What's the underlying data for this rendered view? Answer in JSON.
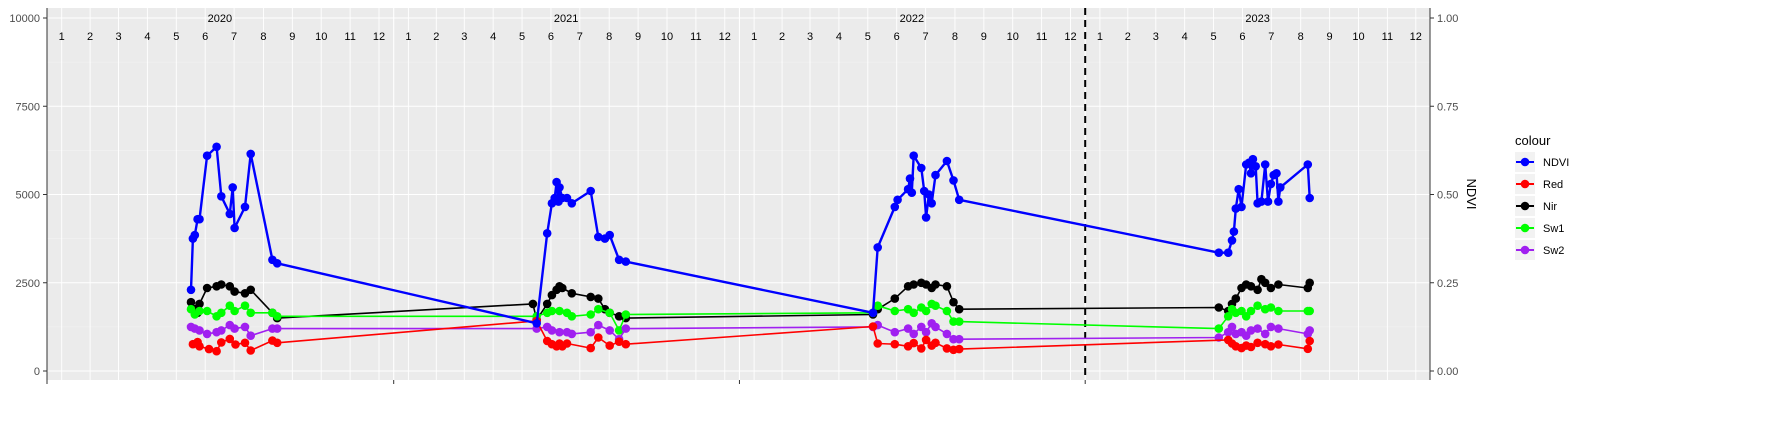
{
  "chart_data": {
    "type": "line",
    "x_axis": {
      "years": [
        "2020",
        "2021",
        "2022",
        "2023"
      ],
      "months": [
        "1",
        "2",
        "3",
        "4",
        "5",
        "6",
        "7",
        "8",
        "9",
        "10",
        "11",
        "12"
      ],
      "range": [
        "2020-01-01",
        "2023-12-31"
      ]
    },
    "y_left": {
      "ticks": [
        "0",
        "2500",
        "5000",
        "7500",
        "10000"
      ],
      "range": [
        0,
        10000
      ]
    },
    "y_right": {
      "label": "NDVI",
      "ticks": [
        "0.00",
        "0.25",
        "0.50",
        "0.75",
        "1.00"
      ],
      "range": [
        0,
        1
      ]
    },
    "vline": {
      "date": "2023-01-01",
      "style": "dashed"
    },
    "grid": true,
    "legend": {
      "title": "colour",
      "position": "right"
    },
    "series": [
      {
        "name": "NDVI",
        "color": "#0000ff",
        "axis": "right",
        "points": [
          [
            "2020-06-01",
            0.23
          ],
          [
            "2020-06-03",
            0.375
          ],
          [
            "2020-06-05",
            0.385
          ],
          [
            "2020-06-08",
            0.43
          ],
          [
            "2020-06-10",
            0.43
          ],
          [
            "2020-06-18",
            0.61
          ],
          [
            "2020-06-28",
            0.635
          ],
          [
            "2020-07-03",
            0.495
          ],
          [
            "2020-07-12",
            0.445
          ],
          [
            "2020-07-15",
            0.52
          ],
          [
            "2020-07-17",
            0.405
          ],
          [
            "2020-07-28",
            0.465
          ],
          [
            "2020-08-03",
            0.615
          ],
          [
            "2020-08-26",
            0.315
          ],
          [
            "2020-08-31",
            0.305
          ],
          [
            "2021-06-01",
            0.135
          ],
          [
            "2021-06-12",
            0.39
          ],
          [
            "2021-06-17",
            0.475
          ],
          [
            "2021-06-20",
            0.49
          ],
          [
            "2021-06-22",
            0.535
          ],
          [
            "2021-06-24",
            0.48
          ],
          [
            "2021-06-25",
            0.52
          ],
          [
            "2021-06-28",
            0.49
          ],
          [
            "2021-07-03",
            0.49
          ],
          [
            "2021-07-08",
            0.475
          ],
          [
            "2021-07-28",
            0.51
          ],
          [
            "2021-08-05",
            0.38
          ],
          [
            "2021-08-12",
            0.375
          ],
          [
            "2021-08-17",
            0.385
          ],
          [
            "2021-08-27",
            0.315
          ],
          [
            "2021-09-03",
            0.31
          ],
          [
            "2022-05-22",
            0.165
          ],
          [
            "2022-05-27",
            0.35
          ],
          [
            "2022-06-14",
            0.465
          ],
          [
            "2022-06-17",
            0.485
          ],
          [
            "2022-06-28",
            0.515
          ],
          [
            "2022-06-30",
            0.545
          ],
          [
            "2022-07-02",
            0.505
          ],
          [
            "2022-07-04",
            0.61
          ],
          [
            "2022-07-12",
            0.575
          ],
          [
            "2022-07-15",
            0.51
          ],
          [
            "2022-07-17",
            0.435
          ],
          [
            "2022-07-20",
            0.5
          ],
          [
            "2022-07-23",
            0.475
          ],
          [
            "2022-07-27",
            0.555
          ],
          [
            "2022-08-08",
            0.595
          ],
          [
            "2022-08-15",
            0.54
          ],
          [
            "2022-08-21",
            0.485
          ],
          [
            "2023-05-22",
            0.335
          ],
          [
            "2023-06-01",
            0.335
          ],
          [
            "2023-06-05",
            0.37
          ],
          [
            "2023-06-07",
            0.395
          ],
          [
            "2023-06-09",
            0.46
          ],
          [
            "2023-06-12",
            0.515
          ],
          [
            "2023-06-15",
            0.465
          ],
          [
            "2023-06-20",
            0.585
          ],
          [
            "2023-06-23",
            0.59
          ],
          [
            "2023-06-25",
            0.56
          ],
          [
            "2023-06-27",
            0.6
          ],
          [
            "2023-06-30",
            0.58
          ],
          [
            "2023-07-02",
            0.475
          ],
          [
            "2023-07-06",
            0.48
          ],
          [
            "2023-07-10",
            0.585
          ],
          [
            "2023-07-13",
            0.48
          ],
          [
            "2023-07-16",
            0.53
          ],
          [
            "2023-07-19",
            0.555
          ],
          [
            "2023-07-22",
            0.56
          ],
          [
            "2023-07-24",
            0.48
          ],
          [
            "2023-07-26",
            0.52
          ],
          [
            "2023-08-24",
            0.585
          ],
          [
            "2023-08-26",
            0.49
          ]
        ]
      },
      {
        "name": "Red",
        "color": "#ff0000",
        "axis": "left",
        "points": [
          [
            "2020-06-03",
            760
          ],
          [
            "2020-06-08",
            820
          ],
          [
            "2020-06-10",
            700
          ],
          [
            "2020-06-20",
            620
          ],
          [
            "2020-06-28",
            560
          ],
          [
            "2020-07-03",
            810
          ],
          [
            "2020-07-12",
            910
          ],
          [
            "2020-07-18",
            750
          ],
          [
            "2020-07-28",
            800
          ],
          [
            "2020-08-03",
            580
          ],
          [
            "2020-08-26",
            860
          ],
          [
            "2020-08-31",
            800
          ],
          [
            "2021-06-01",
            1420
          ],
          [
            "2021-06-12",
            850
          ],
          [
            "2021-06-17",
            760
          ],
          [
            "2021-06-22",
            700
          ],
          [
            "2021-06-25",
            780
          ],
          [
            "2021-06-28",
            700
          ],
          [
            "2021-07-03",
            780
          ],
          [
            "2021-07-28",
            650
          ],
          [
            "2021-08-05",
            950
          ],
          [
            "2021-08-17",
            720
          ],
          [
            "2021-08-27",
            830
          ],
          [
            "2021-09-03",
            760
          ],
          [
            "2022-05-22",
            1260
          ],
          [
            "2022-05-27",
            780
          ],
          [
            "2022-06-14",
            760
          ],
          [
            "2022-06-28",
            700
          ],
          [
            "2022-07-04",
            790
          ],
          [
            "2022-07-12",
            640
          ],
          [
            "2022-07-17",
            880
          ],
          [
            "2022-07-23",
            720
          ],
          [
            "2022-07-27",
            800
          ],
          [
            "2022-08-08",
            640
          ],
          [
            "2022-08-15",
            600
          ],
          [
            "2022-08-21",
            620
          ],
          [
            "2023-06-01",
            880
          ],
          [
            "2023-06-05",
            780
          ],
          [
            "2023-06-09",
            700
          ],
          [
            "2023-06-15",
            650
          ],
          [
            "2023-06-20",
            720
          ],
          [
            "2023-06-25",
            680
          ],
          [
            "2023-07-02",
            800
          ],
          [
            "2023-07-10",
            760
          ],
          [
            "2023-07-16",
            700
          ],
          [
            "2023-07-24",
            750
          ],
          [
            "2023-08-24",
            630
          ],
          [
            "2023-08-26",
            850
          ]
        ]
      },
      {
        "name": "Nir",
        "color": "#000000",
        "axis": "left",
        "points": [
          [
            "2020-06-01",
            1950
          ],
          [
            "2020-06-05",
            1750
          ],
          [
            "2020-06-08",
            1650
          ],
          [
            "2020-06-10",
            1900
          ],
          [
            "2020-06-18",
            2350
          ],
          [
            "2020-06-28",
            2400
          ],
          [
            "2020-07-03",
            2450
          ],
          [
            "2020-07-12",
            2400
          ],
          [
            "2020-07-17",
            2250
          ],
          [
            "2020-07-28",
            2200
          ],
          [
            "2020-08-03",
            2300
          ],
          [
            "2020-08-26",
            1650
          ],
          [
            "2020-08-31",
            1500
          ],
          [
            "2021-05-28",
            1900
          ],
          [
            "2021-06-01",
            1450
          ],
          [
            "2021-06-12",
            1900
          ],
          [
            "2021-06-17",
            2150
          ],
          [
            "2021-06-22",
            2300
          ],
          [
            "2021-06-25",
            2400
          ],
          [
            "2021-06-28",
            2350
          ],
          [
            "2021-07-08",
            2200
          ],
          [
            "2021-07-28",
            2100
          ],
          [
            "2021-08-05",
            2050
          ],
          [
            "2021-08-12",
            1750
          ],
          [
            "2021-08-17",
            1650
          ],
          [
            "2021-08-27",
            1550
          ],
          [
            "2021-09-03",
            1500
          ],
          [
            "2022-05-22",
            1600
          ],
          [
            "2022-05-27",
            1750
          ],
          [
            "2022-06-14",
            2050
          ],
          [
            "2022-06-28",
            2400
          ],
          [
            "2022-07-04",
            2450
          ],
          [
            "2022-07-12",
            2500
          ],
          [
            "2022-07-17",
            2450
          ],
          [
            "2022-07-23",
            2350
          ],
          [
            "2022-07-27",
            2450
          ],
          [
            "2022-08-08",
            2400
          ],
          [
            "2022-08-15",
            1950
          ],
          [
            "2022-08-21",
            1750
          ],
          [
            "2023-05-22",
            1800
          ],
          [
            "2023-06-01",
            1700
          ],
          [
            "2023-06-05",
            1900
          ],
          [
            "2023-06-09",
            2050
          ],
          [
            "2023-06-15",
            2350
          ],
          [
            "2023-06-20",
            2450
          ],
          [
            "2023-06-25",
            2400
          ],
          [
            "2023-07-02",
            2300
          ],
          [
            "2023-07-06",
            2600
          ],
          [
            "2023-07-10",
            2500
          ],
          [
            "2023-07-16",
            2350
          ],
          [
            "2023-07-24",
            2450
          ],
          [
            "2023-08-24",
            2350
          ],
          [
            "2023-08-26",
            2500
          ]
        ]
      },
      {
        "name": "Sw1",
        "color": "#00ff00",
        "axis": "left",
        "points": [
          [
            "2020-06-01",
            1750
          ],
          [
            "2020-06-05",
            1600
          ],
          [
            "2020-06-10",
            1700
          ],
          [
            "2020-06-18",
            1700
          ],
          [
            "2020-06-28",
            1550
          ],
          [
            "2020-07-03",
            1650
          ],
          [
            "2020-07-12",
            1850
          ],
          [
            "2020-07-17",
            1700
          ],
          [
            "2020-07-28",
            1850
          ],
          [
            "2020-08-03",
            1650
          ],
          [
            "2020-08-26",
            1650
          ],
          [
            "2020-08-31",
            1550
          ],
          [
            "2021-06-01",
            1550
          ],
          [
            "2021-06-12",
            1650
          ],
          [
            "2021-06-17",
            1700
          ],
          [
            "2021-06-25",
            1700
          ],
          [
            "2021-07-03",
            1650
          ],
          [
            "2021-07-08",
            1550
          ],
          [
            "2021-07-28",
            1600
          ],
          [
            "2021-08-05",
            1750
          ],
          [
            "2021-08-17",
            1650
          ],
          [
            "2021-08-27",
            1150
          ],
          [
            "2021-09-03",
            1600
          ],
          [
            "2022-05-22",
            1650
          ],
          [
            "2022-05-27",
            1850
          ],
          [
            "2022-06-14",
            1700
          ],
          [
            "2022-06-28",
            1750
          ],
          [
            "2022-07-04",
            1650
          ],
          [
            "2022-07-12",
            1800
          ],
          [
            "2022-07-17",
            1700
          ],
          [
            "2022-07-23",
            1900
          ],
          [
            "2022-07-27",
            1850
          ],
          [
            "2022-08-08",
            1700
          ],
          [
            "2022-08-15",
            1400
          ],
          [
            "2022-08-21",
            1400
          ],
          [
            "2023-05-22",
            1200
          ],
          [
            "2023-06-01",
            1550
          ],
          [
            "2023-06-05",
            1750
          ],
          [
            "2023-06-09",
            1650
          ],
          [
            "2023-06-15",
            1700
          ],
          [
            "2023-06-20",
            1550
          ],
          [
            "2023-06-25",
            1700
          ],
          [
            "2023-07-02",
            1850
          ],
          [
            "2023-07-10",
            1750
          ],
          [
            "2023-07-16",
            1800
          ],
          [
            "2023-07-24",
            1700
          ],
          [
            "2023-08-24",
            1700
          ],
          [
            "2023-08-26",
            1700
          ]
        ]
      },
      {
        "name": "Sw2",
        "color": "#a020f0",
        "axis": "left",
        "points": [
          [
            "2020-06-01",
            1250
          ],
          [
            "2020-06-05",
            1200
          ],
          [
            "2020-06-10",
            1150
          ],
          [
            "2020-06-18",
            1050
          ],
          [
            "2020-06-28",
            1100
          ],
          [
            "2020-07-03",
            1150
          ],
          [
            "2020-07-12",
            1300
          ],
          [
            "2020-07-17",
            1200
          ],
          [
            "2020-07-28",
            1250
          ],
          [
            "2020-08-03",
            1000
          ],
          [
            "2020-08-26",
            1200
          ],
          [
            "2020-08-31",
            1200
          ],
          [
            "2021-06-01",
            1200
          ],
          [
            "2021-06-12",
            1250
          ],
          [
            "2021-06-17",
            1150
          ],
          [
            "2021-06-25",
            1100
          ],
          [
            "2021-07-03",
            1100
          ],
          [
            "2021-07-08",
            1050
          ],
          [
            "2021-07-28",
            1100
          ],
          [
            "2021-08-05",
            1300
          ],
          [
            "2021-08-17",
            1150
          ],
          [
            "2021-08-27",
            900
          ],
          [
            "2021-09-03",
            1200
          ],
          [
            "2022-05-22",
            1250
          ],
          [
            "2022-05-27",
            1300
          ],
          [
            "2022-06-14",
            1100
          ],
          [
            "2022-06-28",
            1200
          ],
          [
            "2022-07-04",
            1050
          ],
          [
            "2022-07-12",
            1250
          ],
          [
            "2022-07-17",
            1100
          ],
          [
            "2022-07-23",
            1350
          ],
          [
            "2022-07-27",
            1250
          ],
          [
            "2022-08-08",
            1050
          ],
          [
            "2022-08-15",
            900
          ],
          [
            "2022-08-21",
            900
          ],
          [
            "2023-05-22",
            950
          ],
          [
            "2023-06-01",
            1100
          ],
          [
            "2023-06-05",
            1250
          ],
          [
            "2023-06-09",
            1050
          ],
          [
            "2023-06-15",
            1100
          ],
          [
            "2023-06-20",
            1000
          ],
          [
            "2023-06-25",
            1150
          ],
          [
            "2023-07-02",
            1200
          ],
          [
            "2023-07-10",
            1050
          ],
          [
            "2023-07-16",
            1250
          ],
          [
            "2023-07-24",
            1200
          ],
          [
            "2023-08-24",
            1050
          ],
          [
            "2023-08-26",
            1150
          ]
        ]
      }
    ]
  }
}
